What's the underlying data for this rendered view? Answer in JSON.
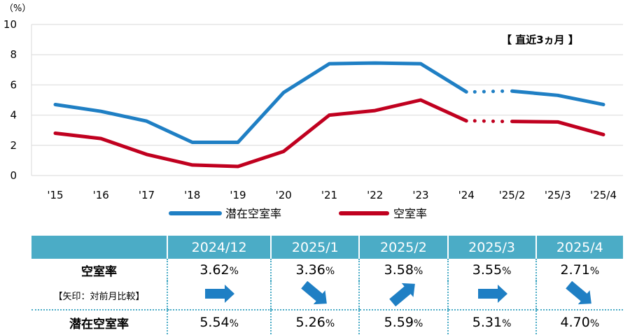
{
  "chart_data": {
    "type": "line",
    "unit_label": "（%）",
    "annotation": "【 直近3ヵ月 】",
    "categories": [
      "'15",
      "'16",
      "'17",
      "'18",
      "'19",
      "'20",
      "'21",
      "'22",
      "'23",
      "'24",
      "'25/2",
      "'25/3",
      "'25/4"
    ],
    "ylim": [
      0,
      10
    ],
    "yticks": [
      "0",
      "2",
      "4",
      "6",
      "8",
      "10"
    ],
    "grid": true,
    "legend_position": "bottom",
    "series": [
      {
        "name": "潜在空室率",
        "color": "#1f7fc4",
        "values": [
          4.7,
          4.25,
          3.6,
          2.2,
          2.2,
          5.5,
          7.4,
          7.45,
          7.4,
          5.54,
          5.59,
          5.31,
          4.7
        ]
      },
      {
        "name": "空室率",
        "color": "#c0001f",
        "values": [
          2.8,
          2.45,
          1.4,
          0.7,
          0.6,
          1.6,
          4.0,
          4.3,
          5.0,
          3.62,
          3.58,
          3.55,
          2.71
        ]
      }
    ],
    "dotted_segment_between": [
      "'24",
      "'25/2"
    ]
  },
  "table": {
    "months": [
      "2024/12",
      "2025/1",
      "2025/2",
      "2025/3",
      "2025/4"
    ],
    "vacancy_label": "空室率",
    "arrow_label": "【矢印：対前月比較】",
    "potential_label": "潜在空室率",
    "percent_sign": "%",
    "vacancy": [
      "3.62",
      "3.36",
      "3.58",
      "3.55",
      "2.71"
    ],
    "potential": [
      "5.54",
      "5.26",
      "5.59",
      "5.31",
      "4.70"
    ],
    "arrows": [
      "right",
      "down-right",
      "up-right",
      "right",
      "down-right"
    ],
    "arrow_color": "#1f7fc4"
  }
}
